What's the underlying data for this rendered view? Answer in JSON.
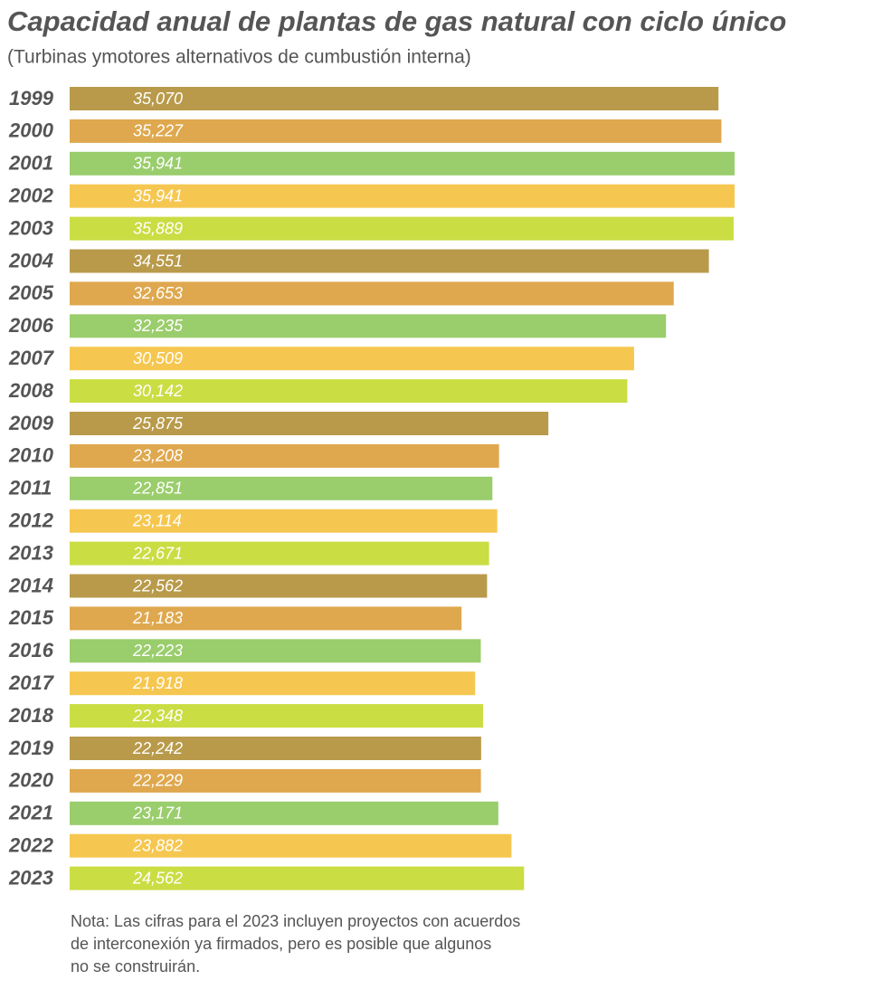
{
  "chart_data": {
    "type": "bar",
    "orientation": "horizontal",
    "title": "Capacidad anual de plantas de gas natural con ciclo único",
    "subtitle": "(Turbinas ymotores alternativos de cumbustión interna)",
    "categories": [
      "1999",
      "2000",
      "2001",
      "2002",
      "2003",
      "2004",
      "2005",
      "2006",
      "2007",
      "2008",
      "2009",
      "2010",
      "2011",
      "2012",
      "2013",
      "2014",
      "2015",
      "2016",
      "2017",
      "2018",
      "2019",
      "2020",
      "2021",
      "2022",
      "2023"
    ],
    "values": [
      35070,
      35227,
      35941,
      35941,
      35889,
      34551,
      32653,
      32235,
      30509,
      30142,
      25875,
      23208,
      22851,
      23114,
      22671,
      22562,
      21183,
      22223,
      21918,
      22348,
      22242,
      22229,
      23171,
      23882,
      24562
    ],
    "value_labels": [
      "35,070",
      "35,227",
      "35,941",
      "35,941",
      "35,889",
      "34,551",
      "32,653",
      "32,235",
      "30,509",
      "30,142",
      "25,875",
      "23,208",
      "22,851",
      "23,114",
      "22,671",
      "22,562",
      "21,183",
      "22,223",
      "21,918",
      "22,348",
      "22,242",
      "22,229",
      "23,171",
      "23,882",
      "24,562"
    ],
    "colors": [
      "#b89a4a",
      "#dfa84e",
      "#9acd6c",
      "#f6c750",
      "#cadd43"
    ],
    "note": [
      "Nota: Las cifras para el 2023 incluyen proyectos con acuerdos",
      "de interconexión ya firmados, pero es posible que algunos",
      "no se construirán."
    ]
  }
}
